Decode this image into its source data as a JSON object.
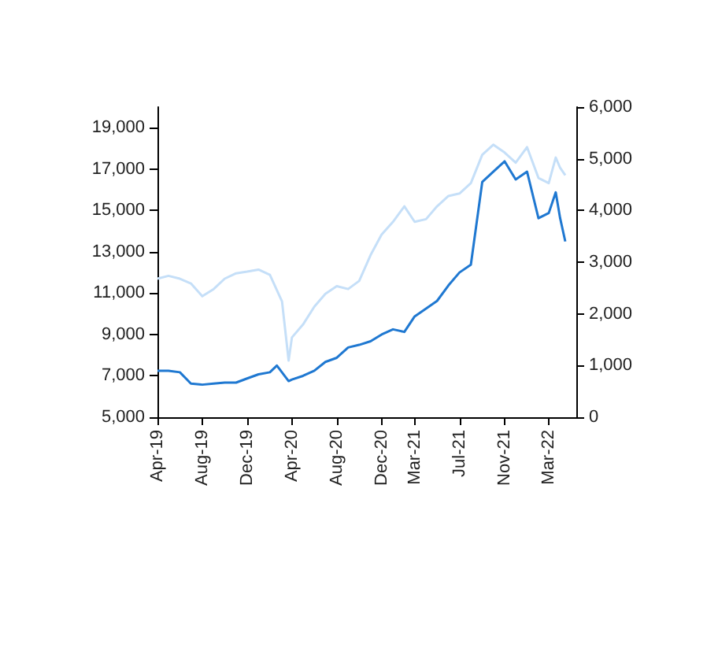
{
  "chart_data": {
    "type": "line",
    "marker": "none",
    "grid": false,
    "xlim": [
      "2019-04-01",
      "2022-05-15"
    ],
    "xticks": [
      {
        "value": "2019-04-01",
        "label": "Apr-19"
      },
      {
        "value": "2019-08-01",
        "label": "Aug-19"
      },
      {
        "value": "2019-12-01",
        "label": "Dec-19"
      },
      {
        "value": "2020-04-01",
        "label": "Apr-20"
      },
      {
        "value": "2020-08-01",
        "label": "Aug-20"
      },
      {
        "value": "2020-12-01",
        "label": "Dec-20"
      },
      {
        "value": "2021-03-01",
        "label": "Mar-21"
      },
      {
        "value": "2021-07-01",
        "label": "Jul-21"
      },
      {
        "value": "2021-11-01",
        "label": "Nov-21"
      },
      {
        "value": "2022-03-01",
        "label": "Mar-22"
      }
    ],
    "ylim": [
      5000,
      20000
    ],
    "yticks": [
      {
        "value": 5000,
        "label": "5,000"
      },
      {
        "value": 7000,
        "label": "7,000"
      },
      {
        "value": 9000,
        "label": "9,000"
      },
      {
        "value": 11000,
        "label": "11,000"
      },
      {
        "value": 13000,
        "label": "13,000"
      },
      {
        "value": 15000,
        "label": "15,000"
      },
      {
        "value": 17000,
        "label": "17,000"
      },
      {
        "value": 19000,
        "label": "19,000"
      }
    ],
    "y2lim": [
      0,
      6000
    ],
    "y2ticks": [
      0,
      {
        "value": 1000,
        "label": "1,000"
      },
      {
        "value": 2000,
        "label": "2,000"
      },
      {
        "value": 3000,
        "label": "3,000"
      },
      {
        "value": 4000,
        "label": "4,000"
      },
      {
        "value": 5000,
        "label": "5,000"
      },
      {
        "value": 6000,
        "label": "6,000"
      }
    ],
    "series": [
      {
        "color": "#c5dff8",
        "x": [
          "2019-04-01",
          "2019-05-01",
          "2019-06-01",
          "2019-07-01",
          "2019-08-01",
          "2019-09-01",
          "2019-10-01",
          "2019-11-01",
          "2019-12-01",
          "2020-01-01",
          "2020-02-01",
          "2020-03-05",
          "2020-03-23",
          "2020-04-01",
          "2020-05-01",
          "2020-06-01",
          "2020-07-01",
          "2020-08-01",
          "2020-09-01",
          "2020-10-01",
          "2020-11-01",
          "2020-12-01",
          "2021-01-01",
          "2021-02-01",
          "2021-03-01",
          "2021-04-01",
          "2021-05-01",
          "2021-06-01",
          "2021-07-01",
          "2021-08-01",
          "2021-09-01",
          "2021-10-01",
          "2021-11-01",
          "2021-12-01",
          "2022-01-01",
          "2022-02-01",
          "2022-03-01",
          "2022-03-20",
          "2022-04-01",
          "2022-04-15"
        ],
        "values": [
          11700,
          11840,
          11700,
          11470,
          10850,
          11200,
          11700,
          11960,
          12040,
          12140,
          11890,
          10600,
          7740,
          8860,
          9480,
          10350,
          10970,
          11340,
          11200,
          11590,
          12840,
          13830,
          14450,
          15200,
          14450,
          14580,
          15200,
          15700,
          15820,
          16320,
          17690,
          18180,
          17800,
          17310,
          18060,
          16570,
          16320,
          17560,
          17060,
          16700
        ]
      },
      {
        "color": "#1f78d1",
        "axis": "y2",
        "x": [
          "2019-04-01",
          "2019-05-01",
          "2019-06-01",
          "2019-07-01",
          "2019-08-01",
          "2019-09-01",
          "2019-10-01",
          "2019-11-01",
          "2019-12-01",
          "2020-01-01",
          "2020-02-01",
          "2020-02-20",
          "2020-03-23",
          "2020-04-01",
          "2020-05-01",
          "2020-06-01",
          "2020-07-01",
          "2020-08-01",
          "2020-09-01",
          "2020-10-01",
          "2020-11-01",
          "2020-12-01",
          "2021-01-01",
          "2021-02-01",
          "2021-03-01",
          "2021-04-01",
          "2021-05-01",
          "2021-06-01",
          "2021-07-01",
          "2021-08-01",
          "2021-09-01",
          "2021-10-01",
          "2021-11-01",
          "2021-12-01",
          "2022-01-01",
          "2022-02-01",
          "2022-03-01",
          "2022-03-20",
          "2022-04-01",
          "2022-04-15"
        ],
        "values": [
          900,
          900,
          870,
          650,
          630,
          650,
          670,
          670,
          750,
          830,
          870,
          1000,
          700,
          730,
          800,
          900,
          1070,
          1150,
          1350,
          1400,
          1470,
          1600,
          1700,
          1650,
          1950,
          2100,
          2250,
          2550,
          2800,
          2950,
          4550,
          4750,
          4950,
          4600,
          4750,
          3850,
          3950,
          4350,
          3850,
          3400
        ]
      }
    ]
  }
}
